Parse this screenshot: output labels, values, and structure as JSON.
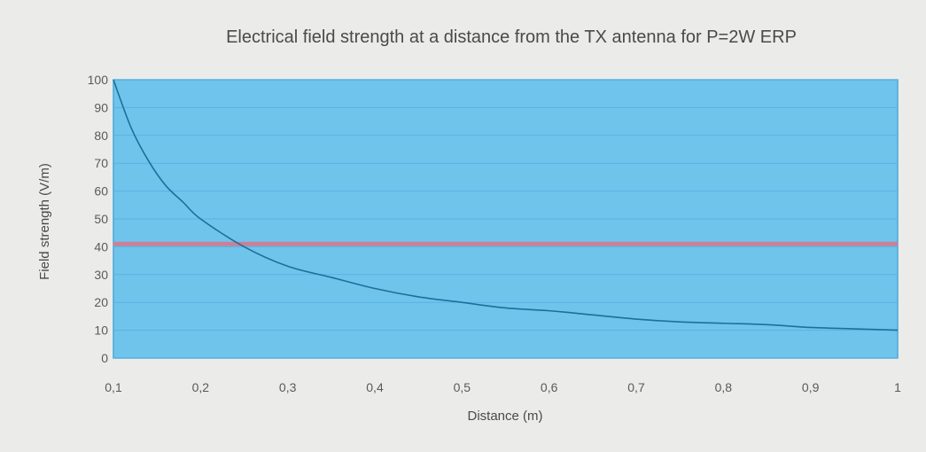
{
  "colors": {
    "page_bg": "#ebebea",
    "plot_bg": "#6fc4ec",
    "plot_border": "#4aa8d8",
    "grid": "#58b2e2",
    "curve": "#1d6f98",
    "threshold": "#c9809a",
    "text": "#4a4a4a"
  },
  "chart_data": {
    "type": "line",
    "title": "Electrical field strength at a distance from the TX antenna for P=2W ERP",
    "xlabel": "Distance (m)",
    "ylabel": "Field strength (V/m)",
    "xlim": [
      0.1,
      1
    ],
    "ylim": [
      0,
      100
    ],
    "x_tick_labels": [
      "0,1",
      "0,2",
      "0,3",
      "0,4",
      "0,5",
      "0,6",
      "0,7",
      "0,8",
      "0,9",
      "1"
    ],
    "y_tick_labels": [
      "0",
      "10",
      "20",
      "30",
      "40",
      "50",
      "60",
      "70",
      "80",
      "90",
      "100"
    ],
    "grid": true,
    "series": [
      {
        "x": [
          0.1,
          0.12,
          0.14,
          0.16,
          0.18,
          0.2,
          0.25,
          0.3,
          0.35,
          0.4,
          0.45,
          0.5,
          0.55,
          0.6,
          0.65,
          0.7,
          0.75,
          0.8,
          0.85,
          0.9,
          0.95,
          1.0
        ],
        "values": [
          100,
          83,
          71,
          62,
          56,
          50,
          40,
          33,
          29,
          25,
          22,
          20,
          18,
          17,
          15.5,
          14,
          13,
          12.5,
          12,
          11,
          10.5,
          10
        ]
      }
    ],
    "reference_lines": [
      {
        "y": 41
      }
    ]
  }
}
